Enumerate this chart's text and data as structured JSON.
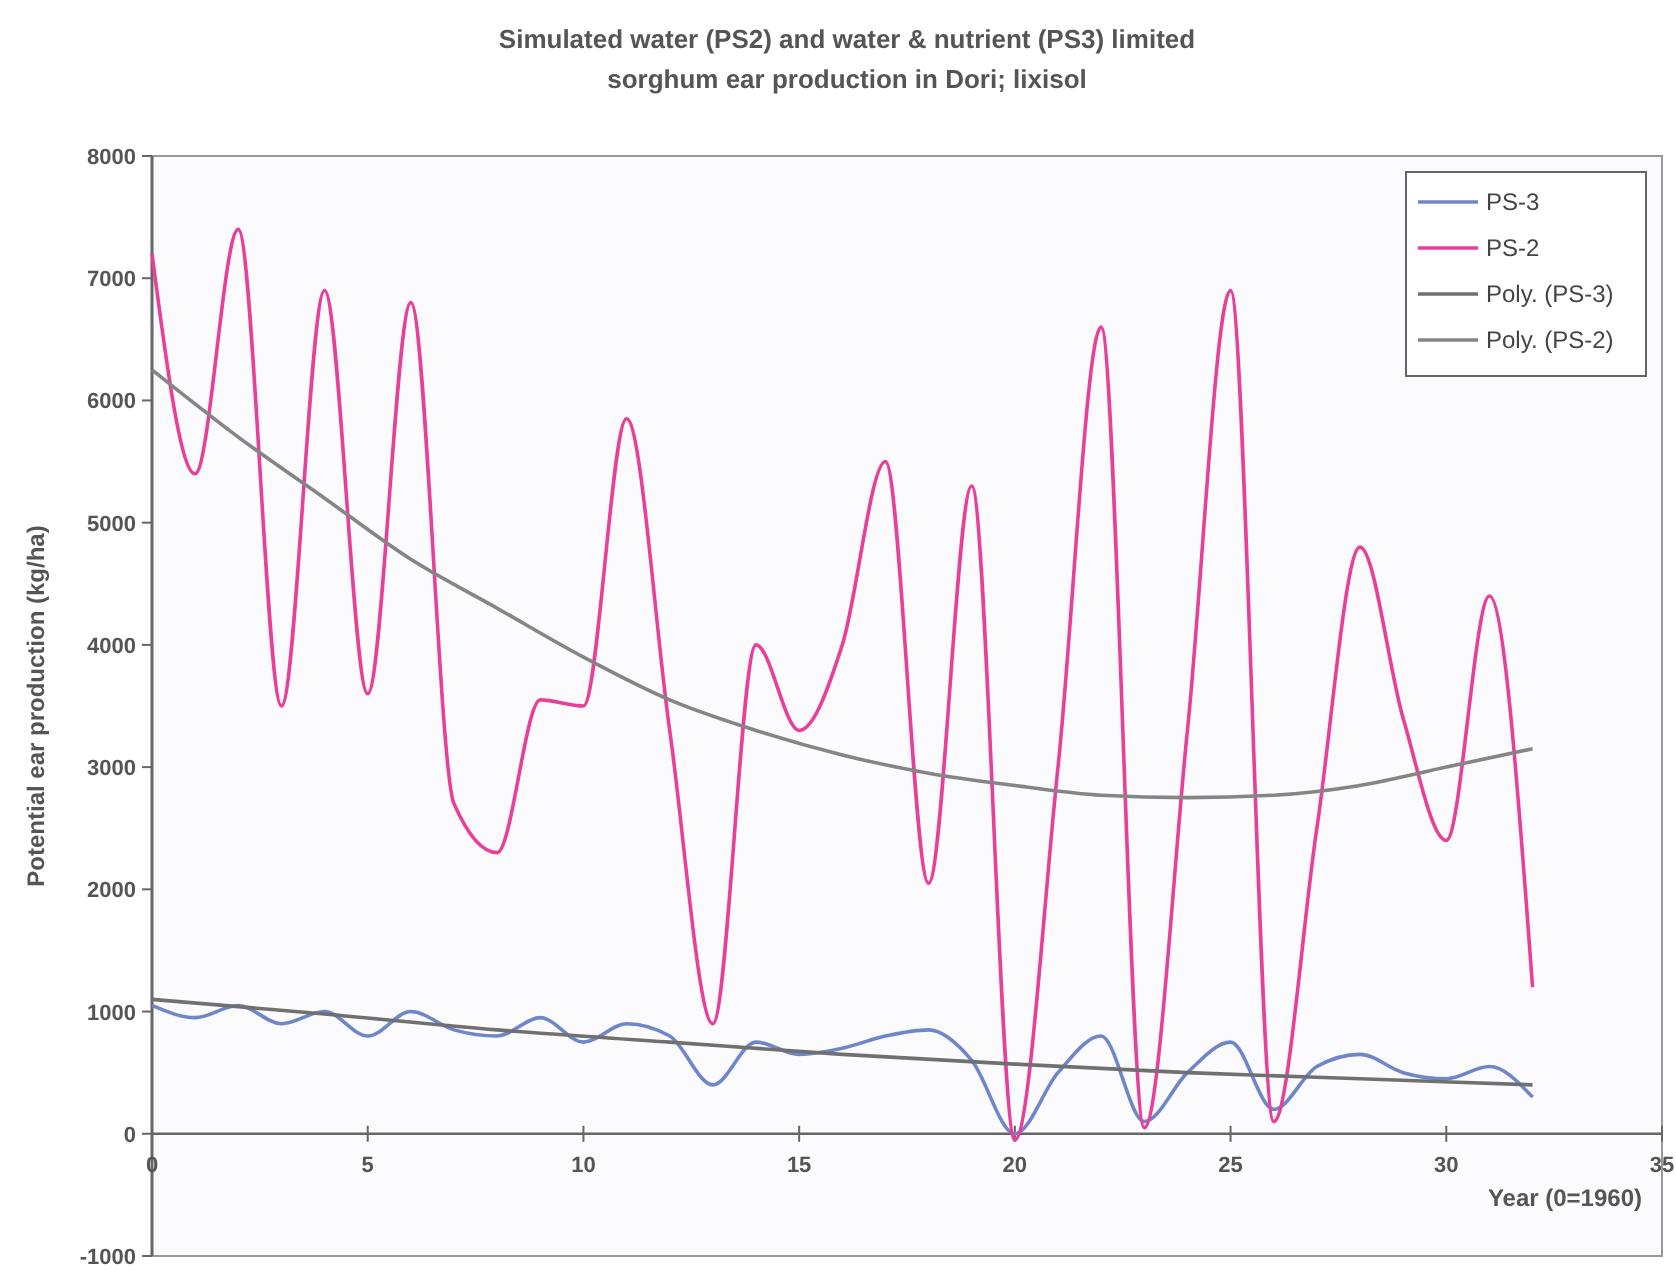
{
  "chart_data": {
    "type": "line",
    "title": "Simulated water (PS2) and water & nutrient (PS3) limited\nsorghum ear production in Dori; lixisol",
    "xlabel": "Year (0=1960)",
    "ylabel": "Potential ear production (kg/ha)",
    "xlim": [
      0,
      35
    ],
    "xticks": [
      0,
      5,
      10,
      15,
      20,
      25,
      30,
      35
    ],
    "ylim": [
      -1000,
      8000
    ],
    "yticks": [
      -1000,
      0,
      1000,
      2000,
      3000,
      4000,
      5000,
      6000,
      7000,
      8000
    ],
    "grid": false,
    "legend": "top right",
    "line_style": "solid",
    "marker": "none",
    "x": [
      0,
      1,
      2,
      3,
      4,
      5,
      6,
      7,
      8,
      9,
      10,
      11,
      12,
      13,
      14,
      15,
      16,
      17,
      18,
      19,
      20,
      21,
      22,
      23,
      24,
      25,
      26,
      27,
      28,
      29,
      30,
      31,
      32
    ],
    "series": [
      {
        "name": "PS-3",
        "color": "#6f86c8",
        "values": [
          1050,
          950,
          1050,
          900,
          1000,
          800,
          1000,
          850,
          800,
          950,
          750,
          900,
          800,
          400,
          750,
          650,
          700,
          800,
          850,
          600,
          0,
          500,
          800,
          100,
          500,
          750,
          200,
          550,
          650,
          500,
          450,
          550,
          300
        ]
      },
      {
        "name": "PS-2",
        "color": "#e8409a",
        "values": [
          7200,
          5400,
          7400,
          3500,
          6900,
          3600,
          6800,
          2700,
          2300,
          3550,
          3500,
          5850,
          3300,
          900,
          4000,
          3300,
          4000,
          5500,
          2050,
          5300,
          -50,
          3000,
          6600,
          50,
          3300,
          6900,
          100,
          2500,
          4800,
          3400,
          2400,
          4400,
          1200
        ]
      },
      {
        "name": "Poly. (PS-3)",
        "color": "#707070",
        "x": [
          0,
          4,
          8,
          12,
          16,
          20,
          24,
          28,
          32
        ],
        "values": [
          1100,
          980,
          850,
          750,
          650,
          570,
          500,
          450,
          400
        ]
      },
      {
        "name": "Poly. (PS-2)",
        "color": "#858585",
        "x": [
          0,
          2,
          4,
          6,
          8,
          10,
          12,
          14,
          16,
          18,
          20,
          22,
          24,
          26,
          28,
          30,
          32
        ],
        "values": [
          6250,
          5700,
          5200,
          4700,
          4300,
          3900,
          3550,
          3300,
          3100,
          2950,
          2850,
          2770,
          2750,
          2770,
          2850,
          3000,
          3150
        ]
      }
    ]
  }
}
